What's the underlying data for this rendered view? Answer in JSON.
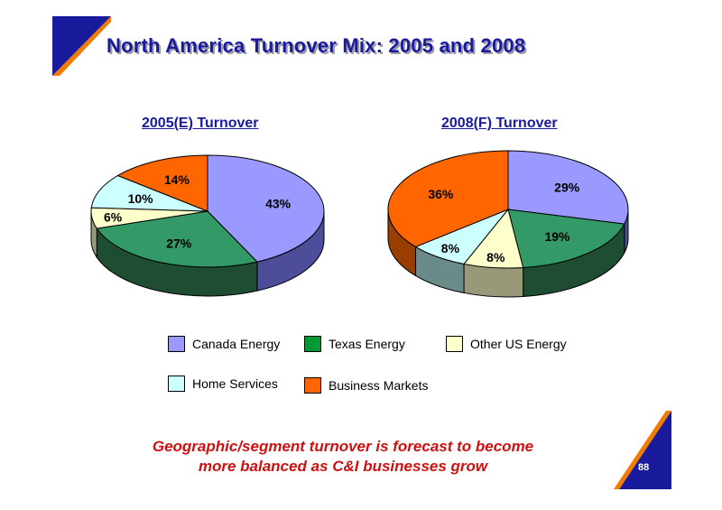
{
  "slide": {
    "title": "North America Turnover Mix: 2005 and 2008",
    "caption_line1": "Geographic/segment turnover is forecast to become",
    "caption_line2": "more balanced as C&I businesses grow",
    "page_number": "88"
  },
  "colors": {
    "title": "#1a1a9c",
    "caption": "#cc1111",
    "corner_blue": "#1a1a9c",
    "corner_orange": "#f27a00"
  },
  "chart_data": [
    {
      "type": "pie",
      "title": "2005(E) Turnover",
      "series": [
        {
          "name": "Canada Energy",
          "value": 43,
          "label": "43%"
        },
        {
          "name": "Texas Energy",
          "value": 27,
          "label": "27%"
        },
        {
          "name": "Other US Energy",
          "value": 6,
          "label": "6%"
        },
        {
          "name": "Home Services",
          "value": 10,
          "label": "10%"
        },
        {
          "name": "Business Markets",
          "value": 14,
          "label": "14%"
        }
      ]
    },
    {
      "type": "pie",
      "title": "2008(F) Turnover",
      "series": [
        {
          "name": "Canada Energy",
          "value": 29,
          "label": "29%"
        },
        {
          "name": "Texas Energy",
          "value": 19,
          "label": "19%"
        },
        {
          "name": "Other US Energy",
          "value": 8,
          "label": "8%"
        },
        {
          "name": "Home Services",
          "value": 8,
          "label": "8%"
        },
        {
          "name": "Business Markets",
          "value": 36,
          "label": "36%"
        }
      ]
    }
  ],
  "legend": [
    {
      "name": "Canada Energy",
      "color": "#9999ff"
    },
    {
      "name": "Texas Energy",
      "color": "#009933"
    },
    {
      "name": "Other US Energy",
      "color": "#ffffcc"
    },
    {
      "name": "Home Services",
      "color": "#ccffff"
    },
    {
      "name": "Business Markets",
      "color": "#ff6600"
    }
  ],
  "slice_colors": {
    "Canada Energy": {
      "top": "#9999ff",
      "side": "#4d4d99"
    },
    "Texas Energy": {
      "top": "#339966",
      "side": "#1f4d33"
    },
    "Other US Energy": {
      "top": "#ffffcc",
      "side": "#99997a"
    },
    "Home Services": {
      "top": "#ccffff",
      "side": "#6b8a8a"
    },
    "Business Markets": {
      "top": "#ff6600",
      "side": "#993d00"
    }
  }
}
